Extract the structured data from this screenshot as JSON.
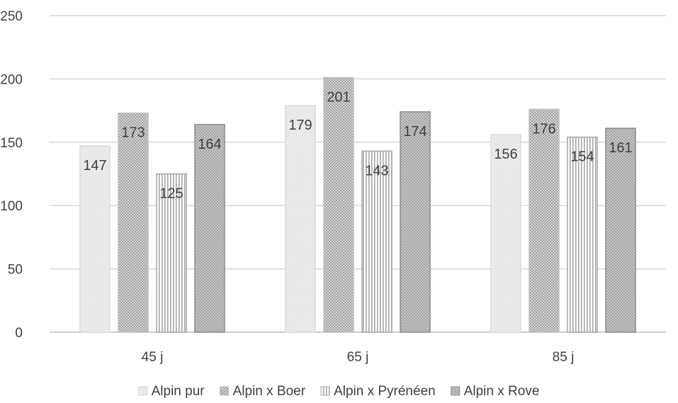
{
  "chart_data": {
    "type": "bar",
    "categories": [
      "45 j",
      "65 j",
      "85 j"
    ],
    "series": [
      {
        "name": "Alpin pur",
        "values": [
          147,
          179,
          156
        ],
        "pattern": "light-dots",
        "color": "#d9d9d9"
      },
      {
        "name": "Alpin x Boer",
        "values": [
          173,
          201,
          176
        ],
        "pattern": "crosshatch",
        "color": "#bfbfbf"
      },
      {
        "name": "Alpin x Pyrénéen",
        "values": [
          125,
          143,
          154
        ],
        "pattern": "vertical-lines",
        "color": "#a6a6a6"
      },
      {
        "name": "Alpin x Rove",
        "values": [
          164,
          174,
          161
        ],
        "pattern": "dark-dots",
        "color": "#8c8c8c"
      }
    ],
    "yticks": [
      "0",
      "50",
      "100",
      "150",
      "200",
      "250"
    ],
    "ylim": [
      0,
      250
    ],
    "grid": true,
    "legend": "bottom"
  }
}
